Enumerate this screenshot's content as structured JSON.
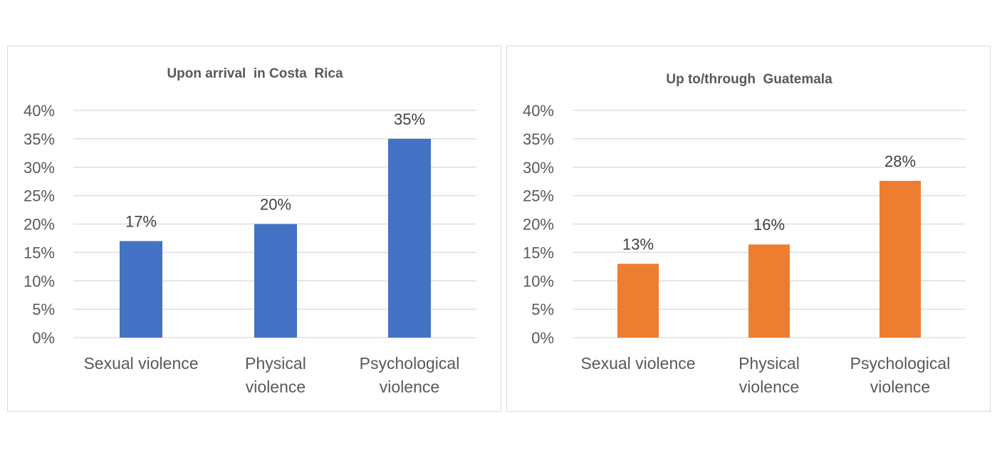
{
  "chart_data": [
    {
      "type": "bar",
      "title": "Upon arrival  in Costa  Rica",
      "categories": [
        [
          "Sexual violence"
        ],
        [
          "Physical",
          "violence"
        ],
        [
          "Psychological",
          "violence"
        ]
      ],
      "values": [
        17,
        20,
        35
      ],
      "data_labels": [
        "17%",
        "20%",
        "35%"
      ],
      "ylim": [
        0,
        40
      ],
      "yticks": [
        "0%",
        "5%",
        "10%",
        "15%",
        "20%",
        "25%",
        "30%",
        "35%",
        "40%"
      ],
      "color": "#4472c4",
      "grid": true,
      "xlabel": "",
      "ylabel": ""
    },
    {
      "type": "bar",
      "title": "Up to/through  Guatemala",
      "categories": [
        [
          "Sexual violence"
        ],
        [
          "Physical",
          "violence"
        ],
        [
          "Psychological",
          "violence"
        ]
      ],
      "values": [
        13,
        16.4,
        27.6
      ],
      "data_labels": [
        "13%",
        "16%",
        "28%"
      ],
      "ylim": [
        0,
        40
      ],
      "yticks": [
        "0%",
        "5%",
        "10%",
        "15%",
        "20%",
        "25%",
        "30%",
        "35%",
        "40%"
      ],
      "color": "#ed7d31",
      "grid": true,
      "xlabel": "",
      "ylabel": ""
    }
  ]
}
